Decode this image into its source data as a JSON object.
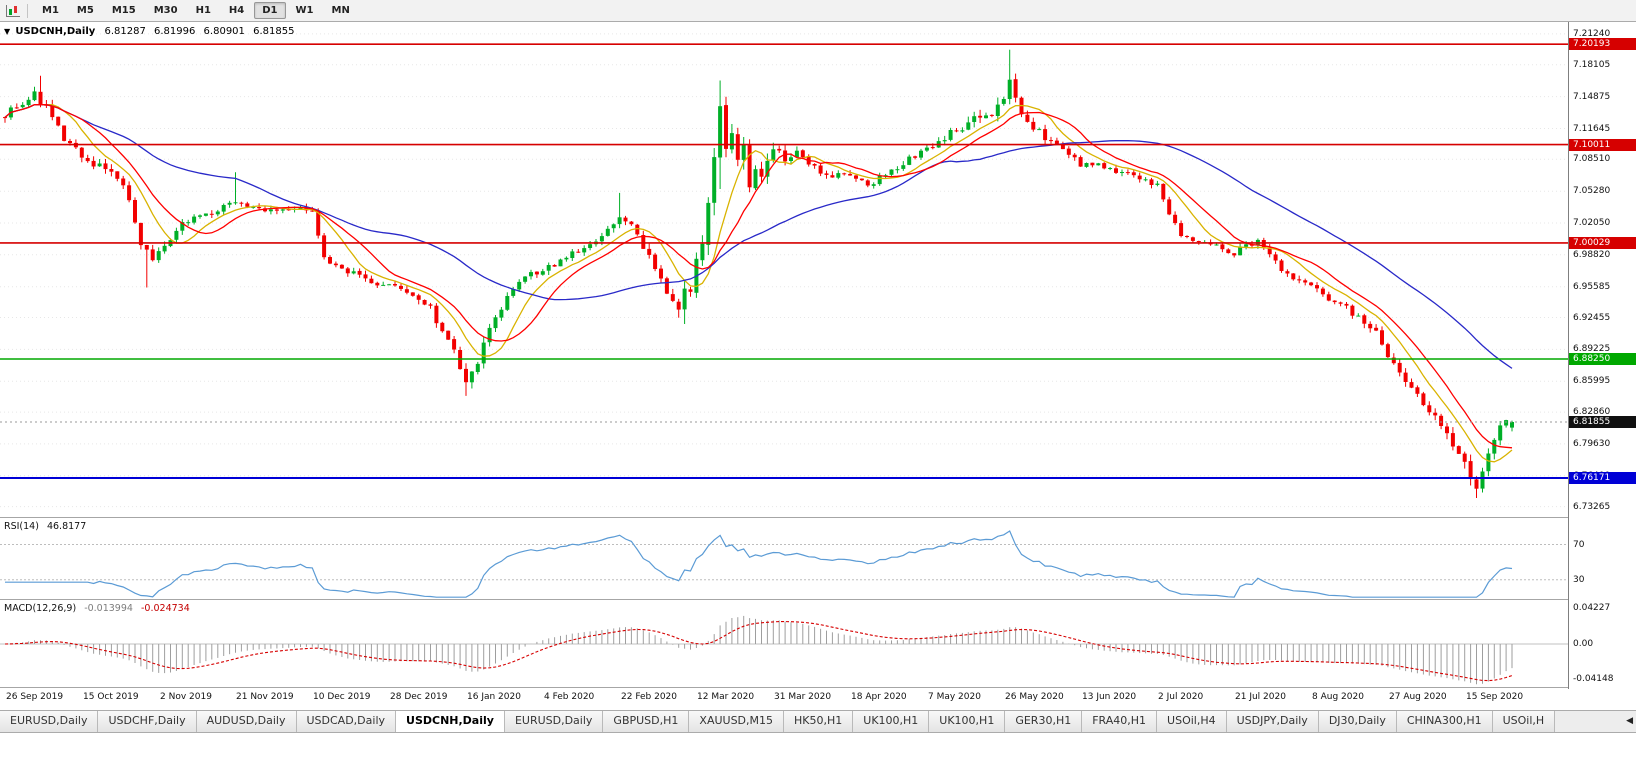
{
  "toolbar": {
    "timeframes": [
      "M1",
      "M5",
      "M15",
      "M30",
      "H1",
      "H4",
      "D1",
      "W1",
      "MN"
    ],
    "active_timeframe": "D1"
  },
  "chart_header": {
    "menu_icon": "▼",
    "symbol": "USDCNH,Daily",
    "ohlc": {
      "open": "6.81287",
      "high": "6.81996",
      "low": "6.80901",
      "close": "6.81855"
    }
  },
  "indicators": {
    "rsi": {
      "label": "RSI(14)",
      "value": "46.8177",
      "levels": [
        "70",
        "30"
      ]
    },
    "macd": {
      "label": "MACD(12,26,9)",
      "value_main": "-0.013994",
      "value_signal": "-0.024734",
      "axis": [
        "0.04227",
        "0.00",
        "-0.04148"
      ]
    }
  },
  "chart_data": {
    "type": "candlestick",
    "symbol": "USDCNH",
    "timeframe": "Daily",
    "candle_count": 256,
    "label_every": 13,
    "price_range": [
      6.7221,
      7.2245
    ],
    "current_price": 6.81855,
    "x_labels": [
      "26 Sep 2019",
      "15 Oct 2019",
      "2 Nov 2019",
      "21 Nov 2019",
      "10 Dec 2019",
      "28 Dec 2019",
      "16 Jan 2020",
      "4 Feb 2020",
      "22 Feb 2020",
      "12 Mar 2020",
      "31 Mar 2020",
      "18 Apr 2020",
      "7 May 2020",
      "26 May 2020",
      "13 Jun 2020",
      "2 Jul 2020",
      "21 Jul 2020",
      "8 Aug 2020",
      "27 Aug 2020",
      "15 Sep 2020"
    ],
    "y_ticks": [
      "7.21240",
      "7.18105",
      "7.14875",
      "7.11645",
      "7.08510",
      "7.05280",
      "7.02050",
      "6.98820",
      "6.95585",
      "6.92455",
      "6.89225",
      "6.85995",
      "6.82860",
      "6.79630",
      "6.76400",
      "6.73265"
    ],
    "hlines": [
      {
        "price": 7.20193,
        "label": "7.20193",
        "color": "#D60000",
        "width": 1.6
      },
      {
        "price": 7.10011,
        "label": "7.10011",
        "color": "#D60000",
        "width": 1.6
      },
      {
        "price": 7.00029,
        "label": "7.00029",
        "color": "#D60000",
        "width": 1.6
      },
      {
        "price": 6.8825,
        "label": "6.88250",
        "color": "#00A800",
        "width": 1.6
      },
      {
        "price": 6.76171,
        "label": "6.76171",
        "color": "#0000D6",
        "width": 2
      }
    ],
    "current_badge": {
      "label": "6.81855",
      "color": "#101010"
    },
    "moving_averages": [
      {
        "name": "ma-fast-yellow",
        "period": 8,
        "color": "#D9B300"
      },
      {
        "name": "ma-slow-blue",
        "period": 40,
        "color": "#2929C8"
      },
      {
        "name": "ma-mid-red",
        "period": 13,
        "color": "#FF0000"
      }
    ],
    "price_anchors": [
      [
        0,
        7.132
      ],
      [
        2,
        7.14
      ],
      [
        5,
        7.15
      ],
      [
        7,
        7.138
      ],
      [
        10,
        7.105
      ],
      [
        13,
        7.088
      ],
      [
        17,
        7.075
      ],
      [
        20,
        7.06
      ],
      [
        23,
        7.0
      ],
      [
        25,
        6.982
      ],
      [
        27,
        6.995
      ],
      [
        30,
        7.018
      ],
      [
        33,
        7.028
      ],
      [
        36,
        7.035
      ],
      [
        39,
        7.042
      ],
      [
        41,
        7.035
      ],
      [
        45,
        7.032
      ],
      [
        49,
        7.036
      ],
      [
        52,
        7.03
      ],
      [
        54,
        6.985
      ],
      [
        57,
        6.972
      ],
      [
        60,
        6.968
      ],
      [
        63,
        6.96
      ],
      [
        66,
        6.958
      ],
      [
        69,
        6.945
      ],
      [
        72,
        6.932
      ],
      [
        75,
        6.905
      ],
      [
        77,
        6.87
      ],
      [
        78,
        6.858
      ],
      [
        80,
        6.88
      ],
      [
        82,
        6.912
      ],
      [
        85,
        6.945
      ],
      [
        88,
        6.965
      ],
      [
        91,
        6.972
      ],
      [
        94,
        6.982
      ],
      [
        97,
        6.992
      ],
      [
        100,
        7.0
      ],
      [
        102,
        7.012
      ],
      [
        104,
        7.03
      ],
      [
        106,
        7.018
      ],
      [
        108,
        6.992
      ],
      [
        110,
        6.975
      ],
      [
        112,
        6.95
      ],
      [
        114,
        6.935
      ],
      [
        116,
        6.96
      ],
      [
        118,
        7.01
      ],
      [
        120,
        7.08
      ],
      [
        121,
        7.13
      ],
      [
        122,
        7.09
      ],
      [
        123,
        7.115
      ],
      [
        124,
        7.08
      ],
      [
        125,
        7.105
      ],
      [
        126,
        7.06
      ],
      [
        127,
        7.082
      ],
      [
        128,
        7.065
      ],
      [
        130,
        7.095
      ],
      [
        132,
        7.085
      ],
      [
        134,
        7.092
      ],
      [
        136,
        7.078
      ],
      [
        139,
        7.07
      ],
      [
        143,
        7.068
      ],
      [
        146,
        7.058
      ],
      [
        149,
        7.07
      ],
      [
        152,
        7.082
      ],
      [
        156,
        7.095
      ],
      [
        159,
        7.108
      ],
      [
        162,
        7.118
      ],
      [
        165,
        7.128
      ],
      [
        167,
        7.135
      ],
      [
        169,
        7.148
      ],
      [
        170,
        7.165
      ],
      [
        171,
        7.152
      ],
      [
        172,
        7.135
      ],
      [
        174,
        7.118
      ],
      [
        176,
        7.108
      ],
      [
        179,
        7.098
      ],
      [
        182,
        7.078
      ],
      [
        185,
        7.082
      ],
      [
        188,
        7.072
      ],
      [
        191,
        7.068
      ],
      [
        195,
        7.058
      ],
      [
        197,
        7.03
      ],
      [
        199,
        7.008
      ],
      [
        202,
        7.0
      ],
      [
        205,
        6.996
      ],
      [
        208,
        6.99
      ],
      [
        210,
        6.998
      ],
      [
        212,
        7.002
      ],
      [
        214,
        6.988
      ],
      [
        216,
        6.972
      ],
      [
        219,
        6.962
      ],
      [
        221,
        6.955
      ],
      [
        224,
        6.945
      ],
      [
        227,
        6.935
      ],
      [
        230,
        6.918
      ],
      [
        232,
        6.908
      ],
      [
        234,
        6.888
      ],
      [
        236,
        6.868
      ],
      [
        238,
        6.855
      ],
      [
        240,
        6.838
      ],
      [
        242,
        6.825
      ],
      [
        244,
        6.805
      ],
      [
        246,
        6.782
      ],
      [
        248,
        6.765
      ],
      [
        249,
        6.755
      ],
      [
        250,
        6.768
      ],
      [
        251,
        6.785
      ],
      [
        252,
        6.8
      ],
      [
        253,
        6.815
      ],
      [
        254,
        6.822
      ],
      [
        255,
        6.8186
      ]
    ],
    "volatility_anchors": [
      [
        0,
        0.008
      ],
      [
        20,
        0.007
      ],
      [
        40,
        0.0055
      ],
      [
        60,
        0.0055
      ],
      [
        74,
        0.009
      ],
      [
        80,
        0.01
      ],
      [
        86,
        0.007
      ],
      [
        100,
        0.006
      ],
      [
        113,
        0.01
      ],
      [
        117,
        0.02
      ],
      [
        126,
        0.015
      ],
      [
        132,
        0.008
      ],
      [
        145,
        0.0055
      ],
      [
        160,
        0.007
      ],
      [
        168,
        0.011
      ],
      [
        173,
        0.007
      ],
      [
        185,
        0.0055
      ],
      [
        205,
        0.005
      ],
      [
        220,
        0.0055
      ],
      [
        235,
        0.0075
      ],
      [
        244,
        0.009
      ],
      [
        250,
        0.011
      ],
      [
        255,
        0.005
      ]
    ],
    "wick_overrides": {
      "6": [
        7.17,
        null
      ],
      "24": [
        null,
        6.955
      ],
      "39": [
        7.072,
        null
      ],
      "78": [
        null,
        6.845
      ],
      "104": [
        7.051,
        null
      ],
      "115": [
        null,
        6.918
      ],
      "121": [
        7.1651,
        7.055
      ],
      "170": [
        7.1964,
        null
      ],
      "249": [
        null,
        6.7414
      ]
    },
    "rsi_period": 14,
    "rsi_levels": [
      70,
      30
    ],
    "macd_fast": 12,
    "macd_slow": 26,
    "macd_signal_period": 9
  },
  "colors": {
    "up_candle": "#00AF27",
    "down_candle": "#F20000",
    "grid": "#E7E7E7",
    "current_line": "#9A9A9A",
    "rsi_line": "#5B9BD5",
    "rsi_level": "#BDBDBD",
    "macd_hist": "#9E9E9E",
    "macd_signal": "#D60000"
  },
  "tabs": {
    "scroll_icon": "◀",
    "items": [
      {
        "label": "EURUSD,Daily",
        "active": false
      },
      {
        "label": "USDCHF,Daily",
        "active": false
      },
      {
        "label": "AUDUSD,Daily",
        "active": false
      },
      {
        "label": "USDCAD,Daily",
        "active": false
      },
      {
        "label": "USDCNH,Daily",
        "active": true
      },
      {
        "label": "EURUSD,Daily",
        "active": false
      },
      {
        "label": "GBPUSD,H1",
        "active": false
      },
      {
        "label": "XAUUSD,M15",
        "active": false
      },
      {
        "label": "HK50,H1",
        "active": false
      },
      {
        "label": "UK100,H1",
        "active": false
      },
      {
        "label": "UK100,H1",
        "active": false
      },
      {
        "label": "GER30,H1",
        "active": false
      },
      {
        "label": "FRA40,H1",
        "active": false
      },
      {
        "label": "USOil,H4",
        "active": false
      },
      {
        "label": "USDJPY,Daily",
        "active": false
      },
      {
        "label": "DJ30,Daily",
        "active": false
      },
      {
        "label": "CHINA300,H1",
        "active": false
      },
      {
        "label": "USOil,H",
        "active": false
      }
    ]
  }
}
